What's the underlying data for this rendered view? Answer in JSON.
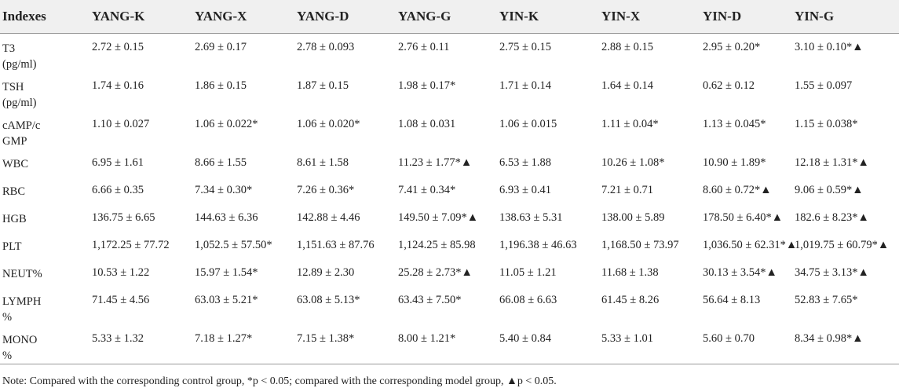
{
  "table": {
    "header": [
      "Indexes",
      "YANG-K",
      "YANG-X",
      "YANG-D",
      "YANG-G",
      "YIN-K",
      "YIN-X",
      "YIN-D",
      "YIN-G"
    ],
    "rows": [
      [
        "T3 (pg/ml)",
        "2.72 ± 0.15",
        "2.69 ± 0.17",
        "2.78 ± 0.093",
        "2.76 ± 0.11",
        "2.75 ± 0.15",
        "2.88 ± 0.15",
        "2.95 ± 0.20*",
        "3.10 ± 0.10*▲"
      ],
      [
        "TSH (pg/ml)",
        "1.74 ± 0.16",
        "1.86 ± 0.15",
        "1.87 ± 0.15",
        "1.98 ± 0.17*",
        "1.71 ± 0.14",
        "1.64 ± 0.14",
        "0.62 ± 0.12",
        "1.55 ± 0.097"
      ],
      [
        "cAMP/cGMP",
        "1.10 ± 0.027",
        "1.06 ± 0.022*",
        "1.06 ± 0.020*",
        "1.08 ± 0.031",
        "1.06 ± 0.015",
        "1.11 ± 0.04*",
        "1.13 ± 0.045*",
        "1.15 ± 0.038*"
      ],
      [
        "WBC",
        "6.95 ± 1.61",
        "8.66 ± 1.55",
        "8.61 ± 1.58",
        "11.23 ± 1.77*▲",
        "6.53 ± 1.88",
        "10.26 ± 1.08*",
        "10.90 ± 1.89*",
        "12.18 ± 1.31*▲"
      ],
      [
        "RBC",
        "6.66 ± 0.35",
        "7.34 ± 0.30*",
        "7.26 ± 0.36*",
        "7.41 ± 0.34*",
        "6.93 ± 0.41",
        "7.21 ± 0.71",
        "8.60 ± 0.72*▲",
        "9.06 ± 0.59*▲"
      ],
      [
        "HGB",
        "136.75 ± 6.65",
        "144.63 ± 6.36",
        "142.88 ± 4.46",
        "149.50 ± 7.09*▲",
        "138.63 ± 5.31",
        "138.00 ± 5.89",
        "178.50 ± 6.40*▲",
        "182.6 ± 8.23*▲"
      ],
      [
        "PLT",
        "1,172.25 ± 77.72",
        "1,052.5 ± 57.50*",
        "1,151.63 ± 87.76",
        "1,124.25 ± 85.98",
        "1,196.38 ± 46.63",
        "1,168.50 ± 73.97",
        "1,036.50 ± 62.31*▲",
        "1,019.75 ± 60.79*▲"
      ],
      [
        "NEUT%",
        "10.53 ± 1.22",
        "15.97 ± 1.54*",
        "12.89 ± 2.30",
        "25.28 ± 2.73*▲",
        "11.05 ± 1.21",
        "11.68 ± 1.38",
        "30.13 ± 3.54*▲",
        "34.75 ± 3.13*▲"
      ],
      [
        "LYMPH%",
        "71.45 ± 4.56",
        "63.03 ± 5.21*",
        "63.08 ± 5.13*",
        "63.43 ± 7.50*",
        "66.08 ± 6.63",
        "61.45 ± 8.26",
        "56.64 ± 8.13",
        "52.83 ± 7.65*"
      ],
      [
        "MONO%",
        "5.33 ± 1.32",
        "7.18 ± 1.27*",
        "7.15 ± 1.38*",
        "8.00 ± 1.21*",
        "5.40 ± 0.84",
        "5.33 ± 1.01",
        "5.60 ± 0.70",
        "8.34 ± 0.98*▲"
      ]
    ],
    "note": "Note: Compared with the corresponding control group, *p < 0.05; compared with the corresponding model group, ▲p < 0.05."
  }
}
